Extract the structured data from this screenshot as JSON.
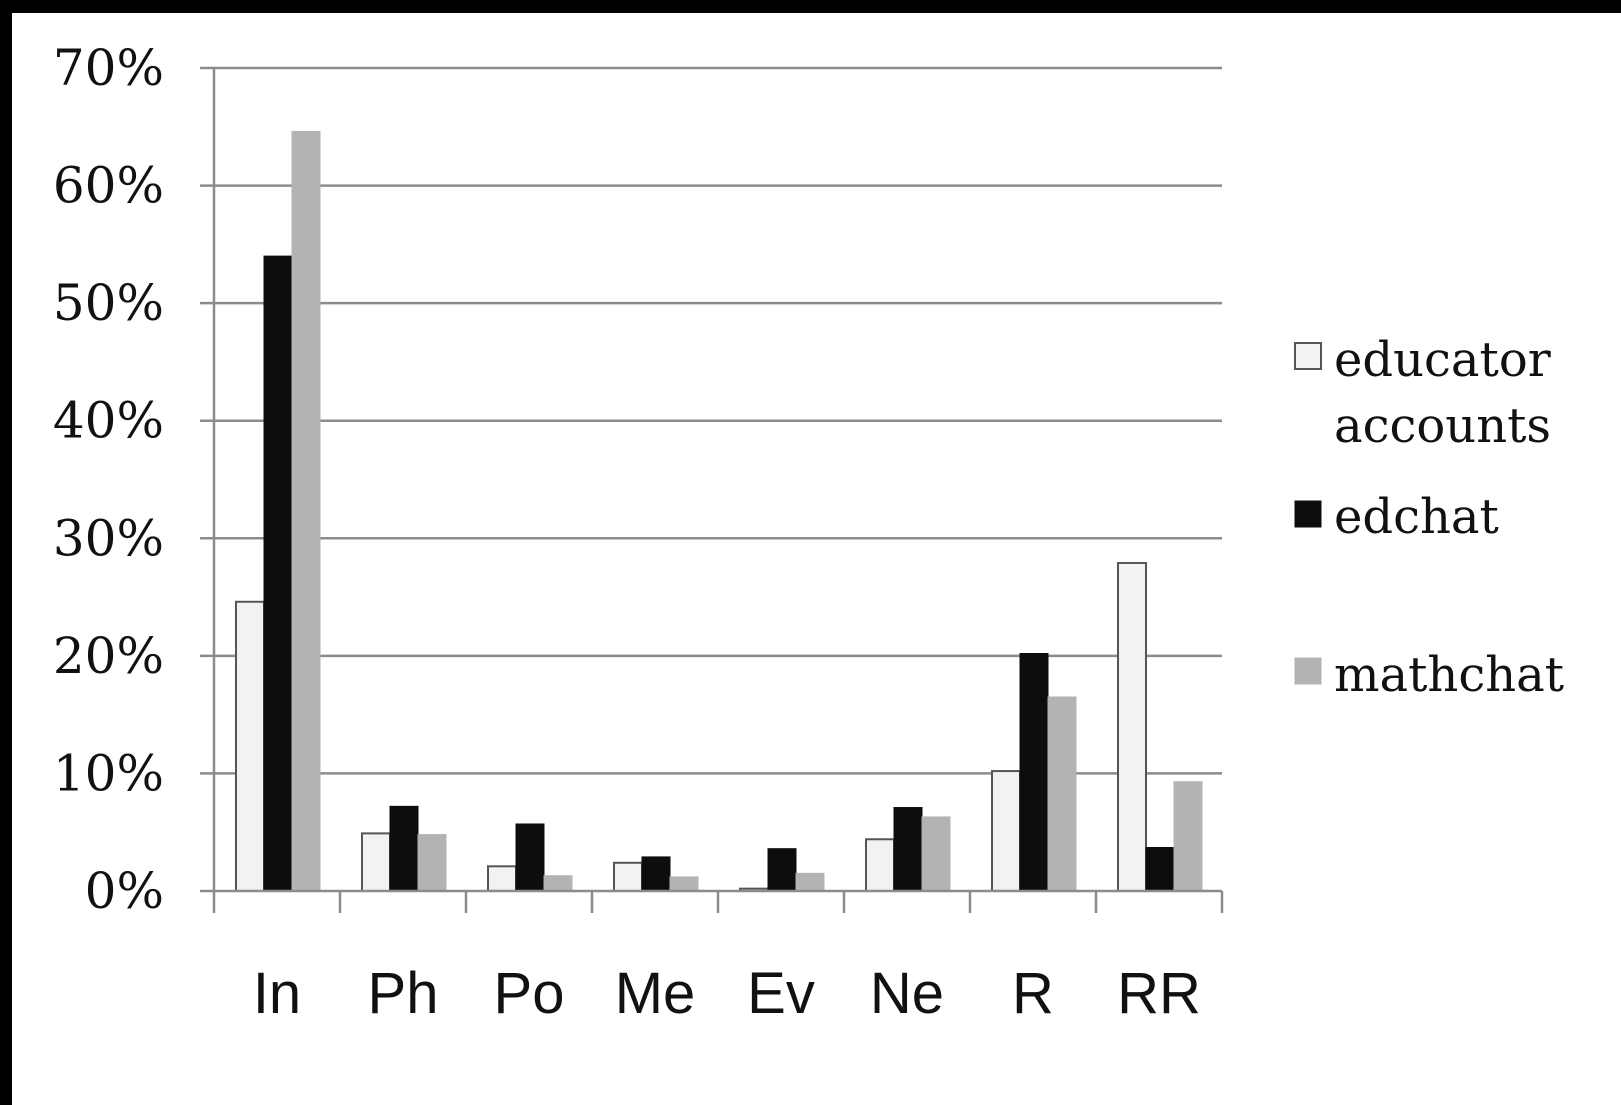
{
  "chart_data": {
    "type": "bar",
    "title": "",
    "xlabel": "",
    "ylabel": "",
    "ylim": [
      0,
      0.7
    ],
    "y_ticks": [
      0,
      0.1,
      0.2,
      0.3,
      0.4,
      0.5,
      0.6,
      0.7
    ],
    "y_tick_labels": [
      "0%",
      "10%",
      "20%",
      "30%",
      "40%",
      "50%",
      "60%",
      "70%"
    ],
    "grid": true,
    "legend_position": "right",
    "categories": [
      "In",
      "Ph",
      "Po",
      "Me",
      "Ev",
      "Ne",
      "R",
      "RR"
    ],
    "series": [
      {
        "name": "educator accounts",
        "name_lines": [
          "educator",
          "accounts"
        ],
        "color": "#f2f2f2",
        "stroke": "#555555",
        "values": [
          0.246,
          0.049,
          0.021,
          0.024,
          0.002,
          0.044,
          0.102,
          0.279
        ]
      },
      {
        "name": "edchat",
        "name_lines": [
          "edchat"
        ],
        "color": "#0d0d0d",
        "stroke": "#0d0d0d",
        "values": [
          0.54,
          0.072,
          0.057,
          0.029,
          0.036,
          0.071,
          0.202,
          0.037
        ]
      },
      {
        "name": "mathchat",
        "name_lines": [
          "mathchat"
        ],
        "color": "#b3b3b3",
        "stroke": "#b3b3b3",
        "values": [
          0.646,
          0.048,
          0.013,
          0.012,
          0.015,
          0.063,
          0.165,
          0.093
        ]
      }
    ]
  }
}
